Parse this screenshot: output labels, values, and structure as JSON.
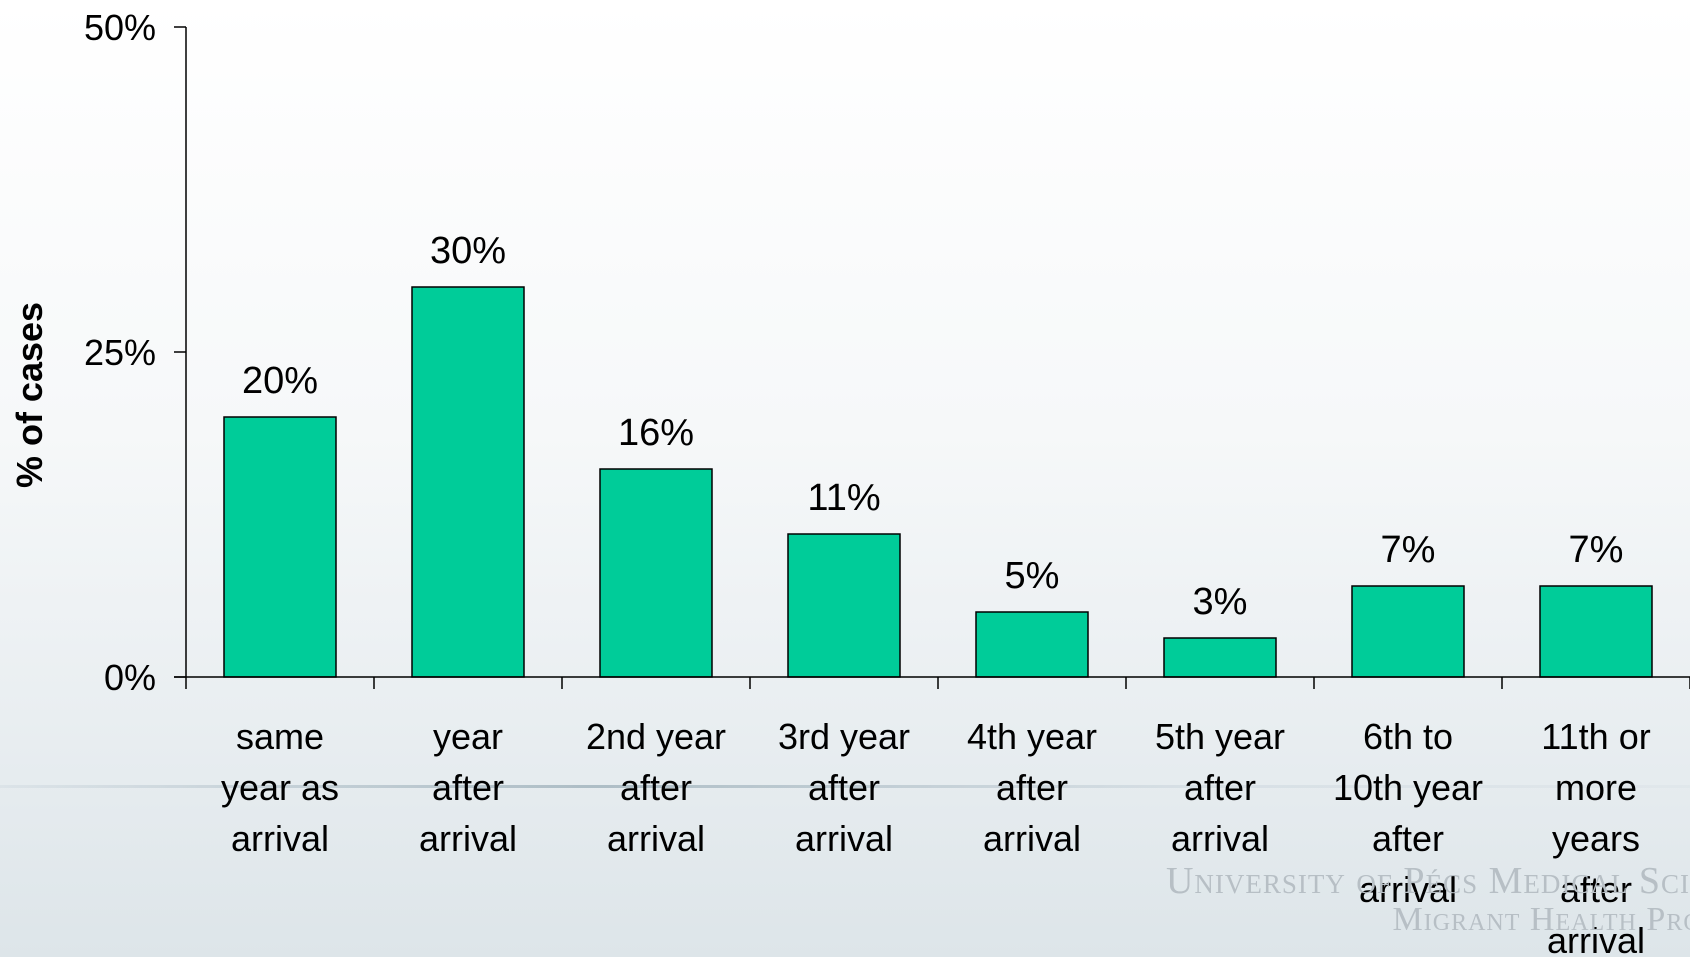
{
  "slide": {
    "watermark_line1": "University of Pécs Medical Sci",
    "watermark_line2": "Migrant Health Prog"
  },
  "chart_data": {
    "type": "bar",
    "title": "",
    "xlabel": "",
    "ylabel": "% of cases",
    "ylim": [
      0,
      50
    ],
    "yticks": [
      0,
      25,
      50
    ],
    "ytick_labels": [
      "0%",
      "25%",
      "50%"
    ],
    "categories": [
      "same year as arrival",
      "year after arrival",
      "2nd year after arrival",
      "3rd year after arrival",
      "4th year after arrival",
      "5th year after arrival",
      "6th to 10th year after arrival",
      "11th or more years after arrival"
    ],
    "category_lines": [
      [
        "same",
        "year as",
        "arrival"
      ],
      [
        "year",
        "after",
        "arrival"
      ],
      [
        "2nd year",
        "after",
        "arrival"
      ],
      [
        "3rd year",
        "after",
        "arrival"
      ],
      [
        "4th year",
        "after",
        "arrival"
      ],
      [
        "5th year",
        "after",
        "arrival"
      ],
      [
        "6th to",
        "10th year",
        "after",
        "arrival"
      ],
      [
        "11th or",
        "more",
        "years",
        "after",
        "arrival"
      ]
    ],
    "values": [
      20,
      30,
      16,
      11,
      5,
      3,
      7,
      7
    ],
    "data_labels": [
      "20%",
      "30%",
      "16%",
      "11%",
      "5%",
      "3%",
      "7%",
      "7%"
    ],
    "bar_color": "#00cc99",
    "grid": false,
    "legend": "none"
  }
}
